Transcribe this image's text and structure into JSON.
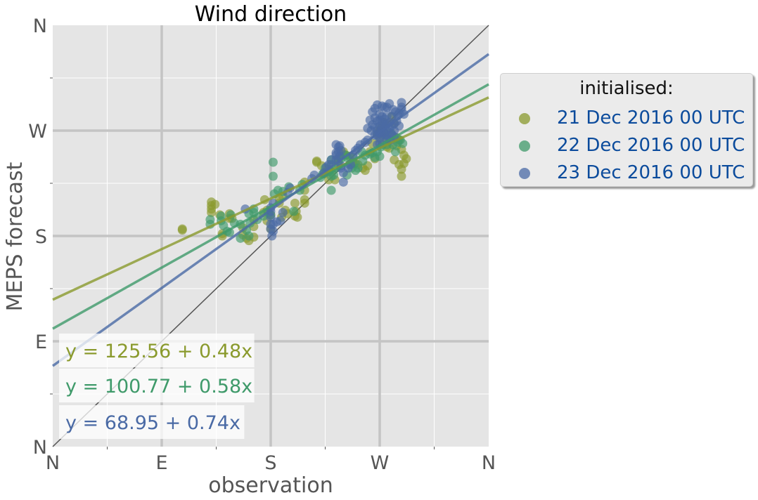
{
  "chart_data": {
    "type": "scatter",
    "title": "Wind direction",
    "xlabel": "observation",
    "ylabel": "MEPS forecast",
    "xlim": [
      0,
      360
    ],
    "ylim": [
      0,
      360
    ],
    "major_ticks": [
      {
        "value": 0,
        "label": "N"
      },
      {
        "value": 90,
        "label": "E"
      },
      {
        "value": 180,
        "label": "S"
      },
      {
        "value": 270,
        "label": "W"
      },
      {
        "value": 360,
        "label": "N"
      }
    ],
    "minor_ticks": [
      45,
      135,
      225,
      315
    ],
    "grid": true,
    "background": "#e5e5e5",
    "identity_line": true,
    "legend": {
      "title": "initialised:",
      "placement": "outside-right-top",
      "entries": [
        "21 Dec 2016 00 UTC",
        "22 Dec 2016 00 UTC",
        "23 Dec 2016 00 UTC"
      ]
    },
    "series": [
      {
        "name": "21 Dec 2016 00 UTC",
        "color": "#8a9a2d",
        "regression": {
          "intercept": 125.56,
          "slope": 0.48,
          "label": "y = 125.56 + 0.48x"
        },
        "points": [
          [
            107,
            186
          ],
          [
            107,
            185
          ],
          [
            131,
            209
          ],
          [
            131,
            206
          ],
          [
            131,
            203
          ],
          [
            131,
            200
          ],
          [
            134,
            207
          ],
          [
            138,
            198
          ],
          [
            140,
            182
          ],
          [
            140,
            180
          ],
          [
            146,
            195
          ],
          [
            146,
            199
          ],
          [
            148,
            195
          ],
          [
            157,
            187
          ],
          [
            157,
            181
          ],
          [
            160,
            178
          ],
          [
            162,
            176
          ],
          [
            166,
            179
          ],
          [
            166,
            188
          ],
          [
            166,
            194
          ],
          [
            174,
            200
          ],
          [
            175,
            211
          ],
          [
            177,
            202
          ],
          [
            177,
            193
          ],
          [
            180,
            198
          ],
          [
            180,
            186
          ],
          [
            187,
            212
          ],
          [
            187,
            208
          ],
          [
            189,
            196
          ],
          [
            190,
            214
          ],
          [
            192,
            202
          ],
          [
            194,
            199
          ],
          [
            200,
            197
          ],
          [
            200,
            208
          ],
          [
            201,
            201
          ],
          [
            202,
            196
          ],
          [
            208,
            226
          ],
          [
            208,
            219
          ],
          [
            208,
            211
          ],
          [
            208,
            208
          ],
          [
            218,
            243
          ],
          [
            218,
            244
          ],
          [
            222,
            240
          ],
          [
            224,
            233
          ],
          [
            228,
            237
          ],
          [
            228,
            228
          ],
          [
            230,
            235
          ],
          [
            233,
            228
          ],
          [
            236,
            241
          ],
          [
            236,
            246
          ],
          [
            240,
            250
          ],
          [
            240,
            252
          ],
          [
            242,
            249
          ],
          [
            245,
            248
          ],
          [
            248,
            243
          ],
          [
            250,
            242
          ],
          [
            252,
            241
          ],
          [
            256,
            238
          ],
          [
            258,
            236
          ],
          [
            260,
            240
          ],
          [
            262,
            252
          ],
          [
            264,
            259
          ],
          [
            266,
            246
          ],
          [
            268,
            267
          ],
          [
            270,
            263
          ],
          [
            270,
            270
          ],
          [
            271,
            272
          ],
          [
            273,
            269
          ],
          [
            274,
            277
          ],
          [
            276,
            262
          ],
          [
            276,
            256
          ],
          [
            278,
            255
          ],
          [
            280,
            266
          ],
          [
            282,
            276
          ],
          [
            284,
            264
          ],
          [
            284,
            257
          ],
          [
            286,
            262
          ],
          [
            288,
            254
          ],
          [
            288,
            237
          ],
          [
            290,
            249
          ],
          [
            290,
            242
          ],
          [
            292,
            246
          ],
          [
            282,
            245
          ],
          [
            286,
            241
          ],
          [
            288,
            231
          ],
          [
            280,
            282
          ]
        ]
      },
      {
        "name": "22 Dec 2016 00 UTC",
        "color": "#3f9a6a",
        "regression": {
          "intercept": 100.77,
          "slope": 0.58,
          "label": "y = 100.77 + 0.58x"
        },
        "points": [
          [
            130,
            194
          ],
          [
            130,
            190
          ],
          [
            139,
            193
          ],
          [
            139,
            197
          ],
          [
            141,
            189
          ],
          [
            144,
            184
          ],
          [
            146,
            183
          ],
          [
            147,
            198
          ],
          [
            150,
            191
          ],
          [
            155,
            190
          ],
          [
            155,
            178
          ],
          [
            160,
            185
          ],
          [
            162,
            180
          ],
          [
            163,
            191
          ],
          [
            162,
            199
          ],
          [
            166,
            200
          ],
          [
            166,
            203
          ],
          [
            169,
            194
          ],
          [
            174,
            197
          ],
          [
            178,
            200
          ],
          [
            180,
            198
          ],
          [
            182,
            243
          ],
          [
            182,
            231
          ],
          [
            183,
            216
          ],
          [
            186,
            219
          ],
          [
            190,
            218
          ],
          [
            195,
            222
          ],
          [
            199,
            201
          ],
          [
            204,
            219
          ],
          [
            206,
            224
          ],
          [
            221,
            230
          ],
          [
            223,
            233
          ],
          [
            225,
            238
          ],
          [
            228,
            235
          ],
          [
            230,
            241
          ],
          [
            230,
            245
          ],
          [
            232,
            232
          ],
          [
            234,
            238
          ],
          [
            236,
            244
          ],
          [
            238,
            246
          ],
          [
            242,
            249
          ],
          [
            243,
            247
          ],
          [
            245,
            241
          ],
          [
            247,
            238
          ],
          [
            249,
            242
          ],
          [
            252,
            238
          ],
          [
            256,
            244
          ],
          [
            258,
            249
          ],
          [
            262,
            250
          ],
          [
            264,
            251
          ],
          [
            266,
            247
          ],
          [
            268,
            252
          ],
          [
            270,
            248
          ],
          [
            271,
            256
          ],
          [
            272,
            258
          ],
          [
            274,
            266
          ],
          [
            276,
            258
          ],
          [
            278,
            262
          ],
          [
            279,
            268
          ],
          [
            281,
            258
          ],
          [
            283,
            252
          ],
          [
            285,
            260
          ],
          [
            287,
            262
          ],
          [
            289,
            259
          ],
          [
            230,
            219
          ],
          [
            230,
            231
          ],
          [
            243,
            232
          ],
          [
            250,
            236
          ],
          [
            255,
            252
          ],
          [
            248,
            247
          ]
        ]
      },
      {
        "name": "23 Dec 2016 00 UTC",
        "color": "#4a6aa5",
        "regression": {
          "intercept": 68.95,
          "slope": 0.74,
          "label": "y = 68.95 + 0.74x"
        },
        "points": [
          [
            159,
            203
          ],
          [
            180,
            186
          ],
          [
            180,
            190
          ],
          [
            180,
            196
          ],
          [
            180,
            201
          ],
          [
            180,
            204
          ],
          [
            181,
            180
          ],
          [
            182,
            184
          ],
          [
            182,
            190
          ],
          [
            182,
            208
          ],
          [
            185,
            192
          ],
          [
            188,
            193
          ],
          [
            190,
            200
          ],
          [
            194,
            217
          ],
          [
            196,
            221
          ],
          [
            214,
            229
          ],
          [
            216,
            232
          ],
          [
            224,
            234
          ],
          [
            226,
            239
          ],
          [
            228,
            241
          ],
          [
            230,
            245
          ],
          [
            234,
            258
          ],
          [
            234,
            251
          ],
          [
            234,
            249
          ],
          [
            234,
            245
          ],
          [
            236,
            256
          ],
          [
            236,
            252
          ],
          [
            237,
            257
          ],
          [
            237,
            248
          ],
          [
            238,
            253
          ],
          [
            238,
            240
          ],
          [
            238,
            238
          ],
          [
            240,
            234
          ],
          [
            240,
            226
          ],
          [
            244,
            238
          ],
          [
            246,
            241
          ],
          [
            248,
            249
          ],
          [
            250,
            253
          ],
          [
            252,
            255
          ],
          [
            254,
            258
          ],
          [
            258,
            260
          ],
          [
            260,
            262
          ],
          [
            263,
            270
          ],
          [
            264,
            275
          ],
          [
            266,
            266
          ],
          [
            266,
            273
          ],
          [
            266,
            281
          ],
          [
            268,
            266
          ],
          [
            268,
            270
          ],
          [
            268,
            278
          ],
          [
            270,
            264
          ],
          [
            270,
            268
          ],
          [
            270,
            274
          ],
          [
            270,
            279
          ],
          [
            270,
            284
          ],
          [
            272,
            266
          ],
          [
            272,
            272
          ],
          [
            272,
            277
          ],
          [
            272,
            282
          ],
          [
            274,
            268
          ],
          [
            274,
            273
          ],
          [
            274,
            280
          ],
          [
            276,
            266
          ],
          [
            276,
            270
          ],
          [
            276,
            276
          ],
          [
            276,
            283
          ],
          [
            278,
            272
          ],
          [
            278,
            277
          ],
          [
            280,
            267
          ],
          [
            280,
            274
          ],
          [
            280,
            282
          ],
          [
            282,
            270
          ],
          [
            282,
            276
          ],
          [
            284,
            278
          ],
          [
            286,
            274
          ],
          [
            286,
            285
          ],
          [
            288,
            294
          ],
          [
            288,
            290
          ],
          [
            288,
            288
          ],
          [
            290,
            284
          ],
          [
            260,
            272
          ],
          [
            262,
            279
          ],
          [
            264,
            286
          ],
          [
            266,
            289
          ],
          [
            268,
            292
          ],
          [
            272,
            291
          ],
          [
            274,
            290
          ],
          [
            276,
            290
          ],
          [
            278,
            293
          ],
          [
            281,
            288
          ],
          [
            283,
            286
          ],
          [
            285,
            283
          ],
          [
            270,
            259
          ],
          [
            268,
            258
          ],
          [
            276,
            263
          ],
          [
            279,
            262
          ],
          [
            282,
            265
          ],
          [
            271,
            270
          ],
          [
            275,
            275
          ]
        ]
      }
    ]
  }
}
